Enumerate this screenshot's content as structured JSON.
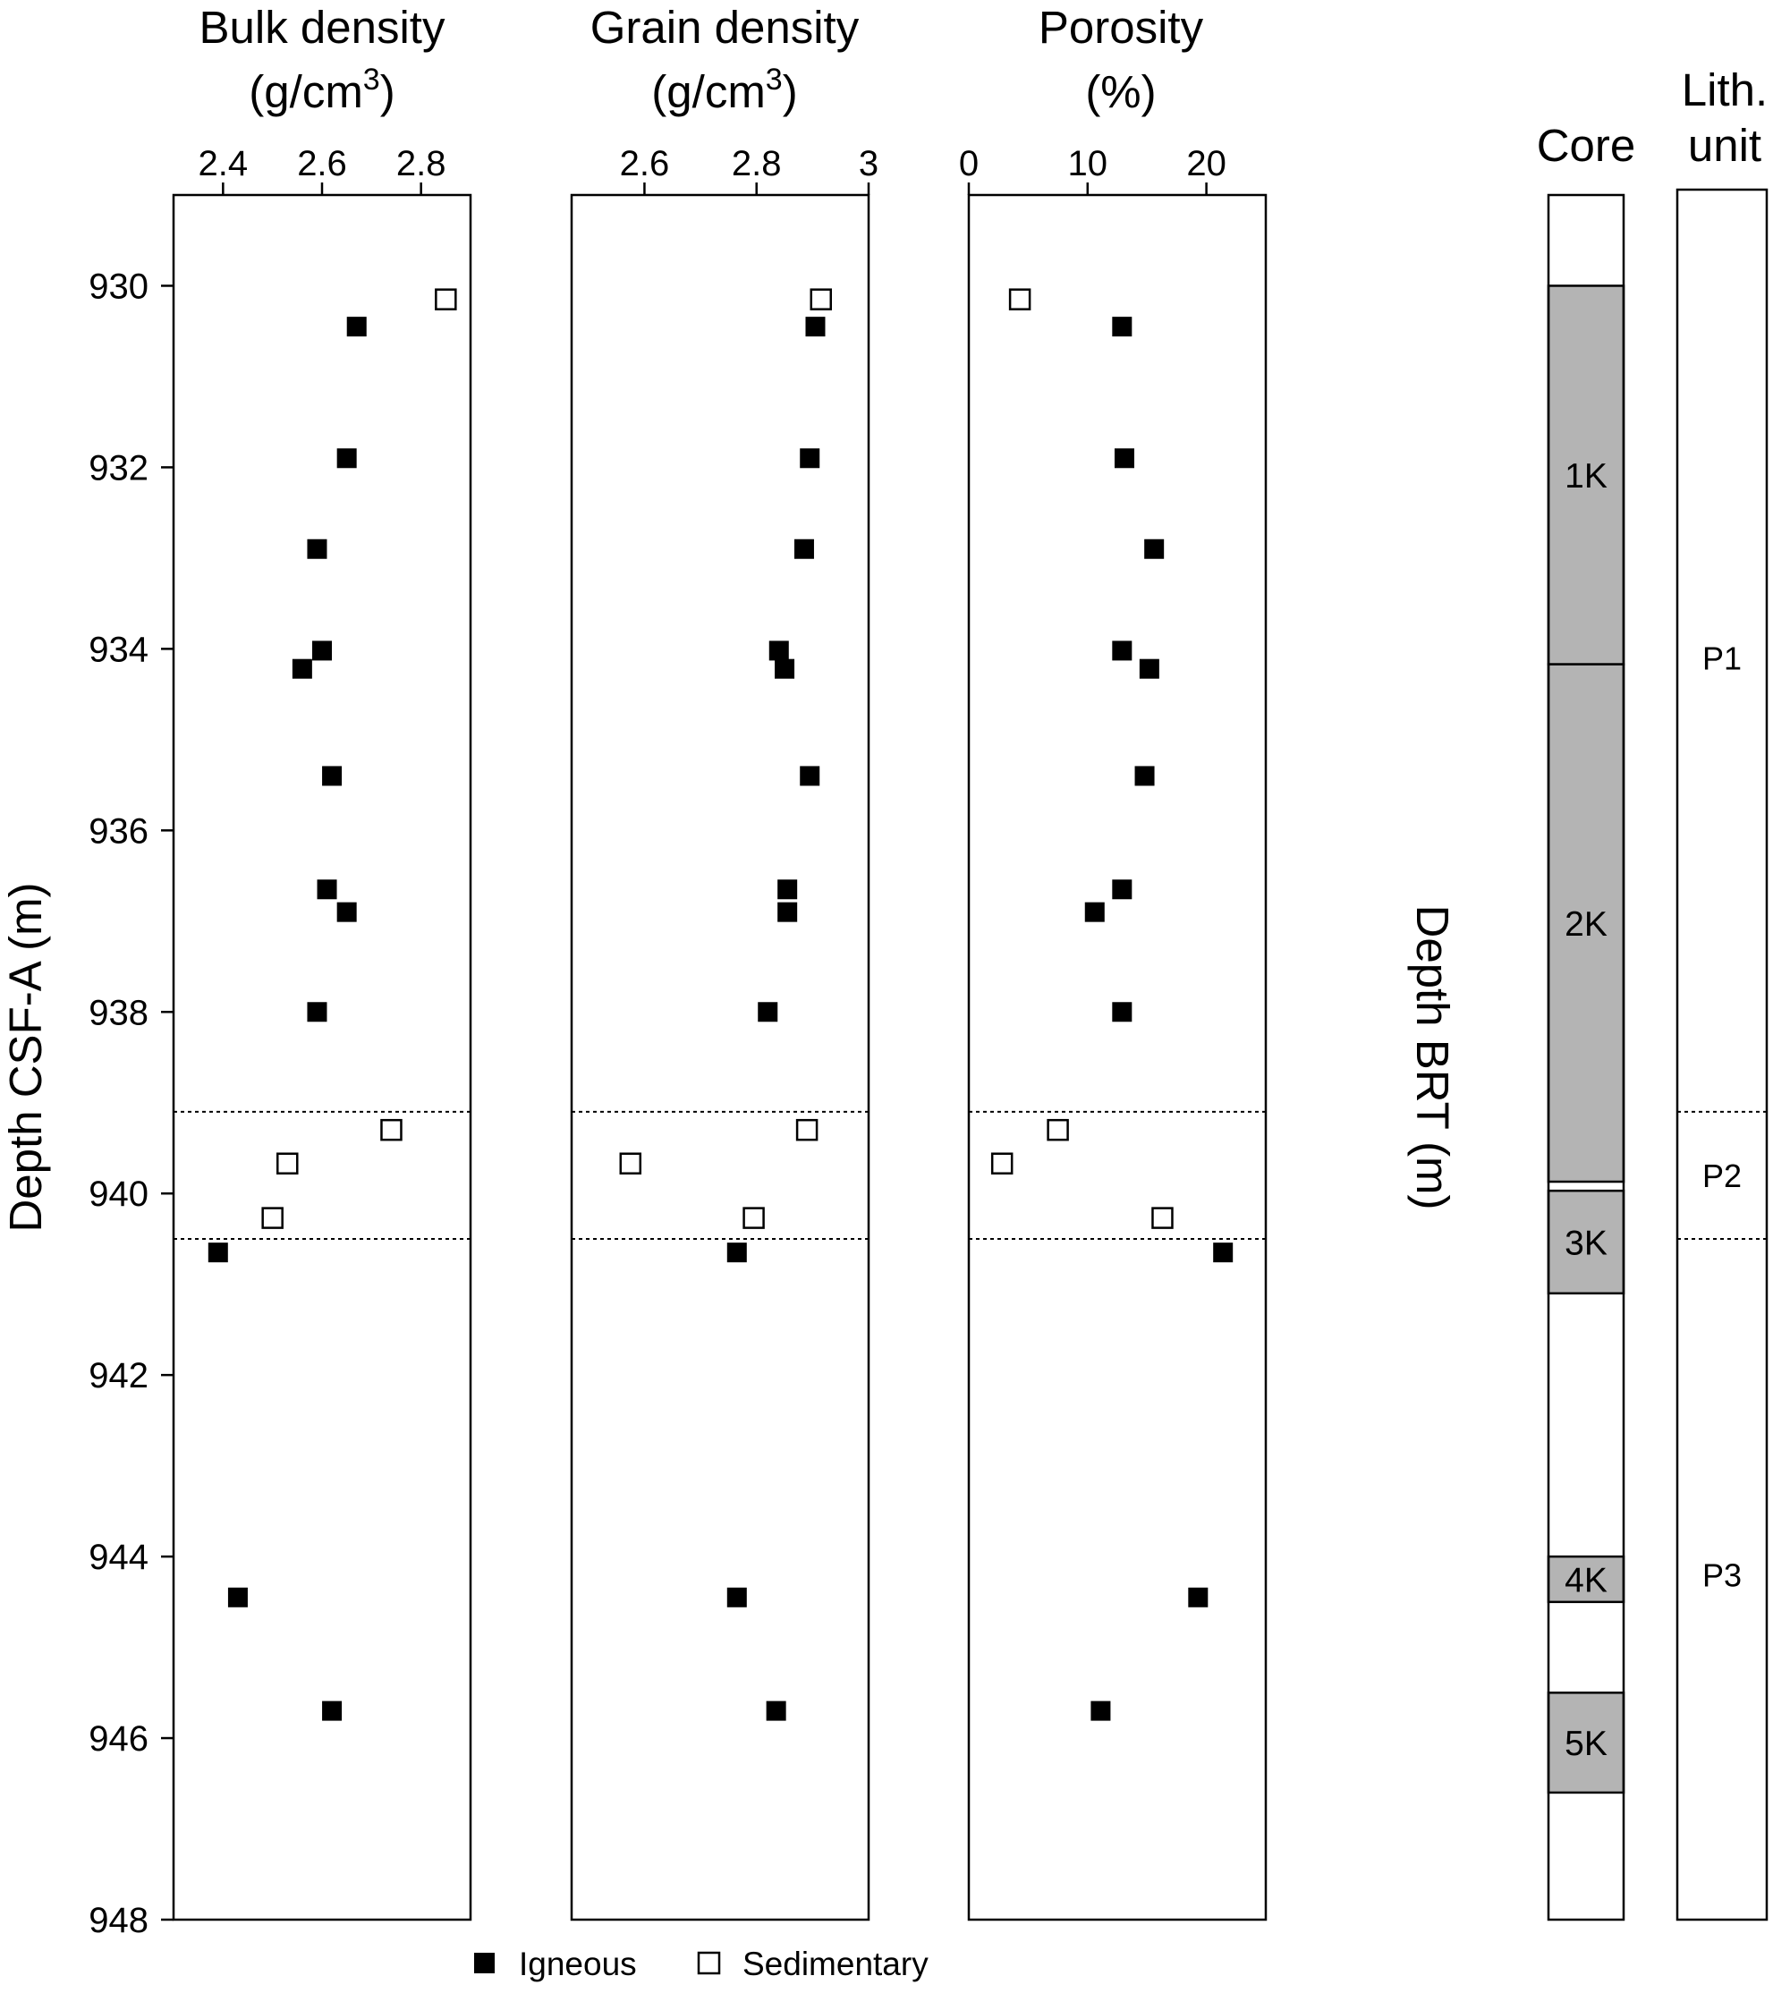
{
  "chart_data": {
    "type": "scatter",
    "y_left": {
      "label": "Depth CSF-A (m)",
      "range": [
        929,
        948
      ],
      "ticks": [
        "930",
        "932",
        "934",
        "936",
        "938",
        "940",
        "942",
        "944",
        "946",
        "948"
      ],
      "inverted": true
    },
    "y_right": {
      "label": "Depth BRT (m)",
      "range": [
        7849,
        7868
      ],
      "ticks": [
        "7850",
        "7852",
        "7854",
        "7856",
        "7858",
        "7860",
        "7862",
        "7864",
        "7866",
        "7868"
      ],
      "inverted": true
    },
    "panels": [
      {
        "title_line1": "Bulk density",
        "title_line2": "(g/cm",
        "title_sup": "3",
        "title_close": ")",
        "xlim": [
          2.3,
          2.9
        ],
        "ticks": [
          2.4,
          2.6,
          2.8
        ],
        "tick_labels": [
          "2.4",
          "2.6",
          "2.8"
        ],
        "igneous": [
          [
            2.67,
            930.45
          ],
          [
            2.65,
            931.9
          ],
          [
            2.59,
            932.9
          ],
          [
            2.6,
            934.02
          ],
          [
            2.56,
            934.22
          ],
          [
            2.62,
            935.4
          ],
          [
            2.61,
            936.65
          ],
          [
            2.65,
            936.9
          ],
          [
            2.59,
            938.0
          ],
          [
            2.39,
            940.65
          ],
          [
            2.43,
            944.45
          ],
          [
            2.62,
            945.7
          ]
        ],
        "sedimentary": [
          [
            2.85,
            930.15
          ],
          [
            2.74,
            939.3
          ],
          [
            2.53,
            939.67
          ],
          [
            2.5,
            940.27
          ]
        ]
      },
      {
        "title_line1": "Grain density",
        "title_line2": "(g/cm",
        "title_sup": "3",
        "title_close": ")",
        "xlim": [
          2.47,
          3.0
        ],
        "ticks": [
          2.6,
          2.8,
          3.0
        ],
        "tick_labels": [
          "2.6",
          "2.8",
          "3"
        ],
        "igneous": [
          [
            2.905,
            930.45
          ],
          [
            2.895,
            931.9
          ],
          [
            2.885,
            932.9
          ],
          [
            2.84,
            934.02
          ],
          [
            2.85,
            934.22
          ],
          [
            2.895,
            935.4
          ],
          [
            2.855,
            936.65
          ],
          [
            2.855,
            936.9
          ],
          [
            2.82,
            938.0
          ],
          [
            2.765,
            940.65
          ],
          [
            2.765,
            944.45
          ],
          [
            2.835,
            945.7
          ]
        ],
        "sedimentary": [
          [
            2.915,
            930.15
          ],
          [
            2.89,
            939.3
          ],
          [
            2.575,
            939.67
          ],
          [
            2.795,
            940.27
          ]
        ]
      },
      {
        "title_line1": "Porosity",
        "title_line2": "(%)",
        "title_sup": "",
        "title_close": "",
        "xlim": [
          0,
          25
        ],
        "ticks": [
          0,
          10,
          20
        ],
        "tick_labels": [
          "0",
          "10",
          "20"
        ],
        "igneous": [
          [
            12.9,
            930.45
          ],
          [
            13.1,
            931.9
          ],
          [
            15.6,
            932.9
          ],
          [
            12.9,
            934.02
          ],
          [
            15.2,
            934.22
          ],
          [
            14.8,
            935.4
          ],
          [
            12.9,
            936.65
          ],
          [
            10.6,
            936.9
          ],
          [
            12.9,
            938.0
          ],
          [
            21.4,
            940.65
          ],
          [
            19.3,
            944.45
          ],
          [
            11.1,
            945.7
          ]
        ],
        "sedimentary": [
          [
            4.3,
            930.15
          ],
          [
            7.5,
            939.3
          ],
          [
            2.8,
            939.67
          ],
          [
            16.3,
            940.27
          ]
        ]
      }
    ],
    "boundaries": [
      939.1,
      940.5
    ],
    "core_column": {
      "header": "Core",
      "segments": [
        {
          "label": "1K",
          "top": 930.0,
          "bottom": 934.17
        },
        {
          "label": "2K",
          "top": 934.17,
          "bottom": 939.87
        },
        {
          "label": "3K",
          "top": 939.97,
          "bottom": 941.1
        },
        {
          "label": "4K",
          "top": 944.0,
          "bottom": 944.5
        },
        {
          "label": "5K",
          "top": 945.5,
          "bottom": 946.6
        }
      ]
    },
    "lith_column": {
      "header_line1": "Lith.",
      "header_line2": "unit",
      "units": [
        {
          "label": "P1",
          "top": 929,
          "bottom": 939.1
        },
        {
          "label": "P2",
          "top": 939.1,
          "bottom": 940.5
        },
        {
          "label": "P3",
          "top": 940.5,
          "bottom": 948
        }
      ]
    },
    "legend": {
      "igneous": "Igneous",
      "sedimentary": "Sedimentary",
      "placement": "bottom"
    },
    "colors": {
      "igneous_fill": "#000000",
      "core_fill": "#b4b4b4"
    }
  }
}
